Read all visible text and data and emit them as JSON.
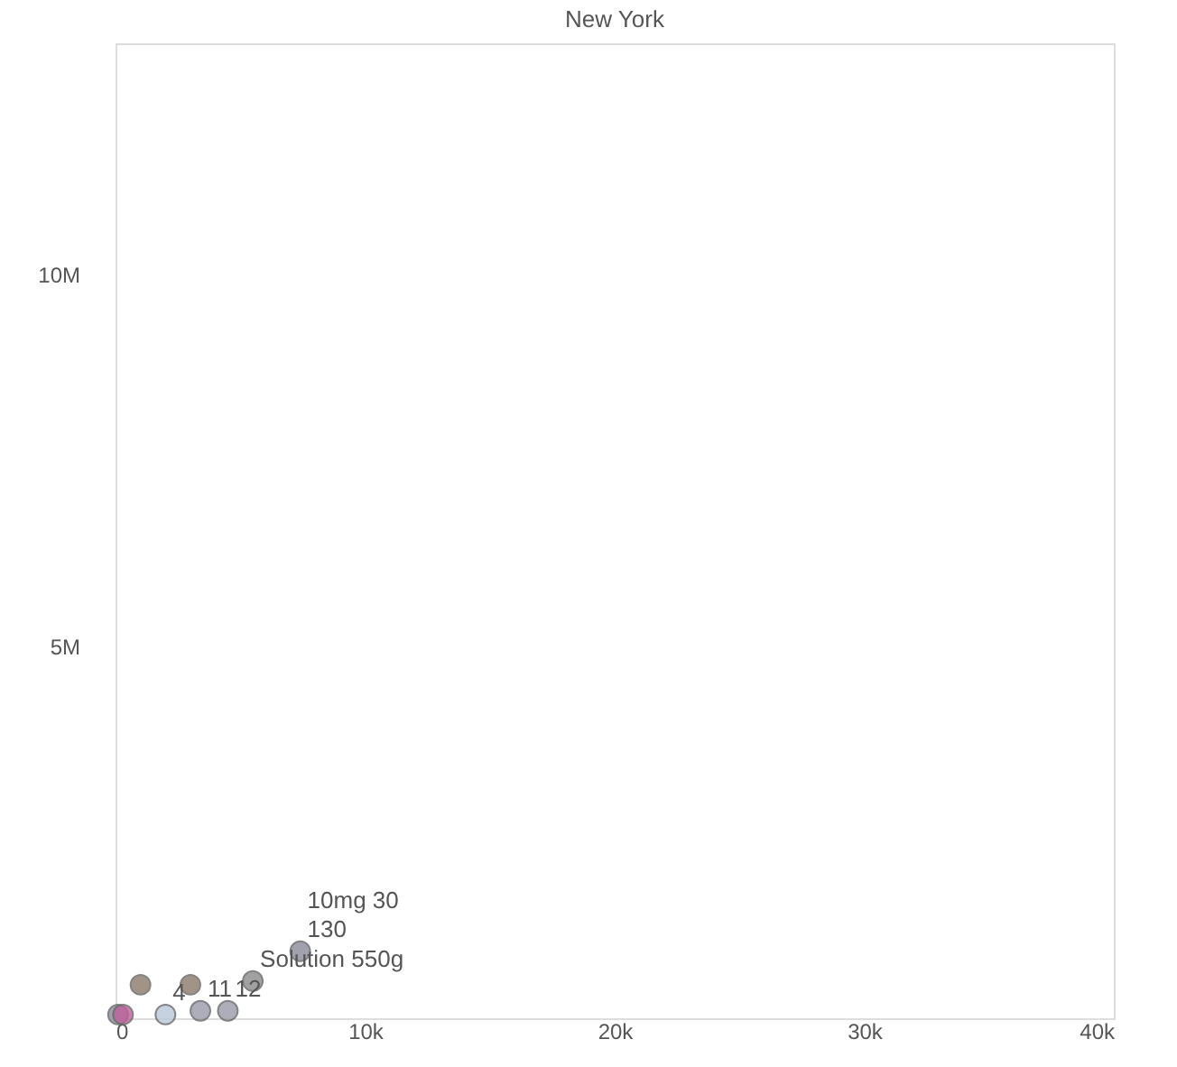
{
  "chart_data": {
    "type": "scatter",
    "title": "New York",
    "x": [
      100,
      300,
      2000,
      3400,
      4500,
      7400,
      1000,
      3000,
      5500
    ],
    "values": [
      50000,
      50000,
      50000,
      100000,
      100000,
      900000,
      450000,
      450000,
      500000
    ],
    "colors": [
      "#8a8a9a",
      "#c0609a",
      "#b8c8d8",
      "#9a9aaa",
      "#9a9aaa",
      "#8a8a9a",
      "#8a7a6a",
      "#8a7a6a",
      "#8a8a8a"
    ],
    "xlim": [
      0,
      40000
    ],
    "xticks": [
      {
        "value": 0,
        "label": "0"
      },
      {
        "value": 10000,
        "label": "10k"
      },
      {
        "value": 20000,
        "label": "20k"
      },
      {
        "value": 30000,
        "label": "30k"
      },
      {
        "value": 40000,
        "label": "40k"
      }
    ],
    "ylim": [
      0,
      13100000
    ],
    "yticks": [
      {
        "value": 5000000,
        "label": "5M"
      },
      {
        "value": 10000000,
        "label": "10M"
      }
    ],
    "annotations": [
      {
        "text": "10mg 30",
        "x": 7400,
        "y": 900000
      },
      {
        "text": "130",
        "x": 7400,
        "y": 900000
      },
      {
        "text": "Solution 550g",
        "x": 5500,
        "y": 500000
      },
      {
        "text": "4",
        "x": 2000,
        "y": 50000
      },
      {
        "text": "11",
        "x": 3400,
        "y": 100000
      },
      {
        "text": "12",
        "x": 4500,
        "y": 100000
      }
    ],
    "grid": false,
    "marker": "circle"
  }
}
